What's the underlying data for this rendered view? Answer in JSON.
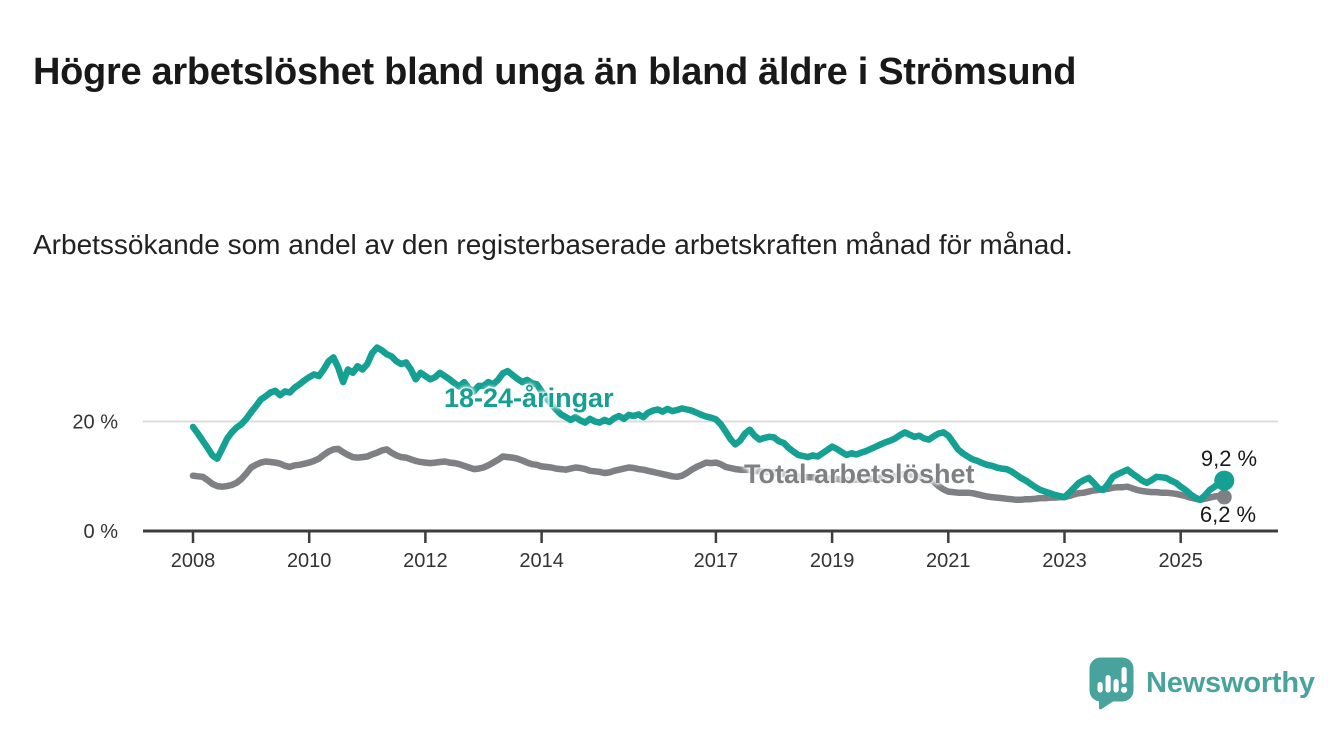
{
  "header": {
    "title": "Högre arbetslöshet bland unga än bland äldre i Strömsund",
    "subtitle": "Arbetssökande som andel av den registerbaserade arbetskraften månad för månad."
  },
  "footer": {
    "brand": "Newsworthy"
  },
  "chart_data": {
    "type": "line",
    "title": "Högre arbetslöshet bland unga än bland äldre i Strömsund",
    "subtitle": "Arbetssökande som andel av den registerbaserade arbetskraften månad för månad.",
    "unit": "%",
    "x_range_years": [
      2008,
      2025.83
    ],
    "ylim": [
      0,
      34
    ],
    "grid": "single horizontal gridline at 20 %",
    "legend_position": "labels drawn directly on lines",
    "colors": {
      "grid": "#dcdcdc",
      "axis": "#3d3d3d",
      "youth": "#14a092",
      "total": "#7e8083"
    },
    "y_ticks": [
      {
        "value": 0,
        "label": "0 %"
      },
      {
        "value": 20,
        "label": "20 %"
      }
    ],
    "x_ticks": [
      {
        "year": 2008,
        "label": "2008"
      },
      {
        "year": 2010,
        "label": "2010"
      },
      {
        "year": 2012,
        "label": "2012"
      },
      {
        "year": 2014,
        "label": "2014"
      },
      {
        "year": 2017,
        "label": "2017"
      },
      {
        "year": 2019,
        "label": "2019"
      },
      {
        "year": 2021,
        "label": "2021"
      },
      {
        "year": 2023,
        "label": "2023"
      },
      {
        "year": 2025,
        "label": "2025"
      }
    ],
    "series": [
      {
        "id": "total",
        "name": "Total arbetslöshet",
        "color": "#7e8083",
        "end_label": "6,2 %",
        "end_value": 6.2,
        "start_year": 2008,
        "step_months": 1,
        "values": [
          10.1,
          10.0,
          9.9,
          9.3,
          8.6,
          8.2,
          8.1,
          8.2,
          8.4,
          8.8,
          9.5,
          10.5,
          11.6,
          12.1,
          12.5,
          12.7,
          12.6,
          12.5,
          12.3,
          11.9,
          11.7,
          12.0,
          12.1,
          12.3,
          12.5,
          12.8,
          13.2,
          13.9,
          14.5,
          14.9,
          15.0,
          14.4,
          13.9,
          13.5,
          13.4,
          13.5,
          13.6,
          14.0,
          14.3,
          14.7,
          14.9,
          14.3,
          13.8,
          13.5,
          13.4,
          13.1,
          12.8,
          12.6,
          12.5,
          12.4,
          12.5,
          12.6,
          12.7,
          12.5,
          12.4,
          12.2,
          11.9,
          11.6,
          11.3,
          11.4,
          11.6,
          12.0,
          12.5,
          13.0,
          13.6,
          13.5,
          13.4,
          13.2,
          12.9,
          12.5,
          12.2,
          12.1,
          11.8,
          11.7,
          11.6,
          11.4,
          11.3,
          11.2,
          11.4,
          11.6,
          11.5,
          11.3,
          11.0,
          10.9,
          10.8,
          10.6,
          10.7,
          11.0,
          11.2,
          11.4,
          11.6,
          11.5,
          11.3,
          11.2,
          11.0,
          10.8,
          10.6,
          10.4,
          10.2,
          10.0,
          9.9,
          10.1,
          10.6,
          11.2,
          11.7,
          12.1,
          12.5,
          12.4,
          12.5,
          12.2,
          11.7,
          11.5,
          11.3,
          11.2,
          11.2,
          11.1,
          11.0,
          10.9,
          10.8,
          10.8,
          10.7,
          10.5,
          10.4,
          10.2,
          10.1,
          9.9,
          9.9,
          9.8,
          9.8,
          9.7,
          9.7,
          9.6,
          9.6,
          9.5,
          9.4,
          9.3,
          9.3,
          9.4,
          9.4,
          9.5,
          9.5,
          9.6,
          9.7,
          9.8,
          9.9,
          10.0,
          10.2,
          10.4,
          10.4,
          10.2,
          9.9,
          9.6,
          9.4,
          9.0,
          8.2,
          7.6,
          7.2,
          7.1,
          7.0,
          7.0,
          7.0,
          6.9,
          6.7,
          6.5,
          6.3,
          6.2,
          6.1,
          6.0,
          5.9,
          5.8,
          5.7,
          5.7,
          5.8,
          5.8,
          5.9,
          6.0,
          6.0,
          6.1,
          6.1,
          6.2,
          6.2,
          6.4,
          6.7,
          6.9,
          7.0,
          7.2,
          7.4,
          7.5,
          7.6,
          7.7,
          7.9,
          8.0,
          8.0,
          8.1,
          7.8,
          7.5,
          7.3,
          7.2,
          7.1,
          7.1,
          7.0,
          7.0,
          6.9,
          6.8,
          6.6,
          6.4,
          6.1,
          5.9,
          5.7,
          5.9,
          6.1,
          6.3,
          6.4,
          6.2
        ]
      },
      {
        "id": "youth",
        "name": "18-24-åringar",
        "color": "#14a092",
        "end_label": "9,2 %",
        "end_value": 9.2,
        "start_year": 2008,
        "step_months": 1,
        "values": [
          19.0,
          17.8,
          16.5,
          15.2,
          13.8,
          13.2,
          15.0,
          16.8,
          18.0,
          18.9,
          19.5,
          20.5,
          21.7,
          22.8,
          24.0,
          24.6,
          25.3,
          25.6,
          24.8,
          25.5,
          25.3,
          26.2,
          26.8,
          27.5,
          28.1,
          28.6,
          28.3,
          29.5,
          31.0,
          31.7,
          29.8,
          27.2,
          29.5,
          28.9,
          30.1,
          29.5,
          30.5,
          32.5,
          33.5,
          33.0,
          32.3,
          31.9,
          31.0,
          30.5,
          30.8,
          29.5,
          27.7,
          28.9,
          28.3,
          27.7,
          28.1,
          28.9,
          28.3,
          27.7,
          27.0,
          26.4,
          27.2,
          26.0,
          25.5,
          26.5,
          26.5,
          27.2,
          26.8,
          27.6,
          28.8,
          29.2,
          28.5,
          27.8,
          27.2,
          27.6,
          27.0,
          26.8,
          25.5,
          24.3,
          23.2,
          22.2,
          21.3,
          20.8,
          20.3,
          20.8,
          20.2,
          19.8,
          20.5,
          20.0,
          19.8,
          20.3,
          19.9,
          20.6,
          21.0,
          20.5,
          21.2,
          21.0,
          21.3,
          20.8,
          21.6,
          22.0,
          22.2,
          21.8,
          22.3,
          21.9,
          22.1,
          22.4,
          22.2,
          22.0,
          21.6,
          21.2,
          20.9,
          20.7,
          20.4,
          19.5,
          18.2,
          16.8,
          15.8,
          16.5,
          17.8,
          18.5,
          17.4,
          16.7,
          17.0,
          17.2,
          17.1,
          16.4,
          16.1,
          15.2,
          14.5,
          13.9,
          13.7,
          13.5,
          13.8,
          13.6,
          14.2,
          14.8,
          15.4,
          15.0,
          14.4,
          13.9,
          14.2,
          14.0,
          14.3,
          14.6,
          15.0,
          15.4,
          15.8,
          16.2,
          16.5,
          16.9,
          17.5,
          18.0,
          17.6,
          17.2,
          17.4,
          16.9,
          16.7,
          17.3,
          17.8,
          18.0,
          17.4,
          16.2,
          14.9,
          14.2,
          13.6,
          13.1,
          12.8,
          12.4,
          12.1,
          11.9,
          11.6,
          11.4,
          11.3,
          10.9,
          10.3,
          9.7,
          9.2,
          8.6,
          8.0,
          7.5,
          7.2,
          6.9,
          6.6,
          6.4,
          6.2,
          7.0,
          7.9,
          8.8,
          9.3,
          9.7,
          8.8,
          7.8,
          7.5,
          8.6,
          9.9,
          10.4,
          10.8,
          11.2,
          10.5,
          9.9,
          9.2,
          8.8,
          9.3,
          9.9,
          9.8,
          9.7,
          9.2,
          8.8,
          8.1,
          7.5,
          6.7,
          6.1,
          5.7,
          6.5,
          7.5,
          8.1,
          8.8,
          9.2
        ]
      }
    ]
  }
}
